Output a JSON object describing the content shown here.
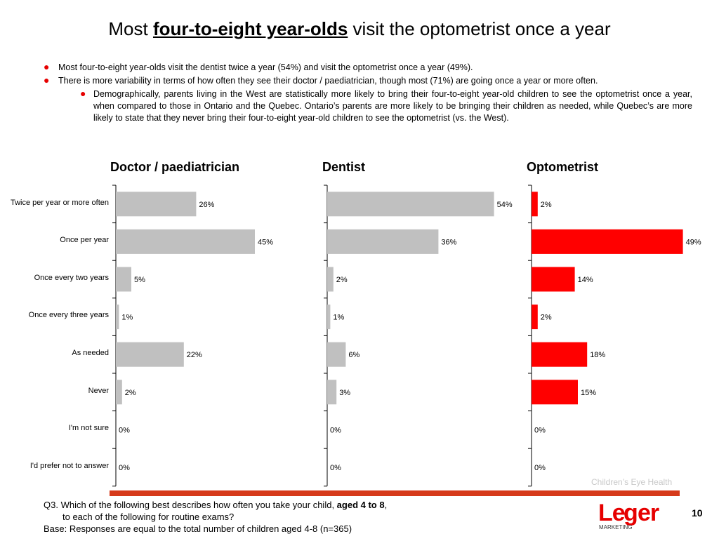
{
  "title": {
    "pre": "Most ",
    "emph": "four-to-eight year-olds",
    "post": " visit the optometrist once a year"
  },
  "bullets": {
    "b1": "Most four-to-eight year-olds visit the dentist twice a year (54%) and visit the optometrist once a year (49%).",
    "b2": "There is more variability in terms of how often they see their doctor / paediatrician, though most (71%) are going once a year or more often.",
    "b3": "Demographically, parents living in the West are statistically more likely to bring their four-to-eight year-old children to see the optometrist once a year, when compared to those in Ontario and the Quebec.  Ontario’s parents are more likely to be bringing their children as needed, while Quebec’s are more likely to state that they never bring their four-to-eight year-old children to see the optometrist (vs. the West)."
  },
  "chart_data": {
    "type": "bar",
    "orientation": "horizontal",
    "categories": [
      "Twice per year or more often",
      "Once per year",
      "Once every two years",
      "Once every three years",
      "As needed",
      "Never",
      "I'm not sure",
      "I'd prefer not to answer"
    ],
    "series": [
      {
        "name": "Doctor / paediatrician",
        "values": [
          26,
          45,
          5,
          1,
          22,
          2,
          0,
          0
        ],
        "color": "#c0c0c0"
      },
      {
        "name": "Dentist",
        "values": [
          54,
          36,
          2,
          1,
          6,
          3,
          0,
          0
        ],
        "color": "#c0c0c0"
      },
      {
        "name": "Optometrist",
        "values": [
          2,
          49,
          14,
          2,
          18,
          15,
          0,
          0
        ],
        "color": "#ff0000"
      }
    ],
    "value_suffix": "%",
    "xlim": [
      0,
      60
    ]
  },
  "footer": {
    "q_pre": "Q3. Which of the following best describes how often you take your child, ",
    "q_bold": "aged 4 to 8",
    "q_post": ",",
    "q_line2": "to each of the following for routine exams?",
    "base": "Base: Responses are equal to the total number of children aged 4-8 (n=365)"
  },
  "caption": "Children’s Eye Health",
  "page_number": "10",
  "logo": {
    "text": "Leger",
    "sub": "MARKETING",
    "color": "#e60000"
  }
}
